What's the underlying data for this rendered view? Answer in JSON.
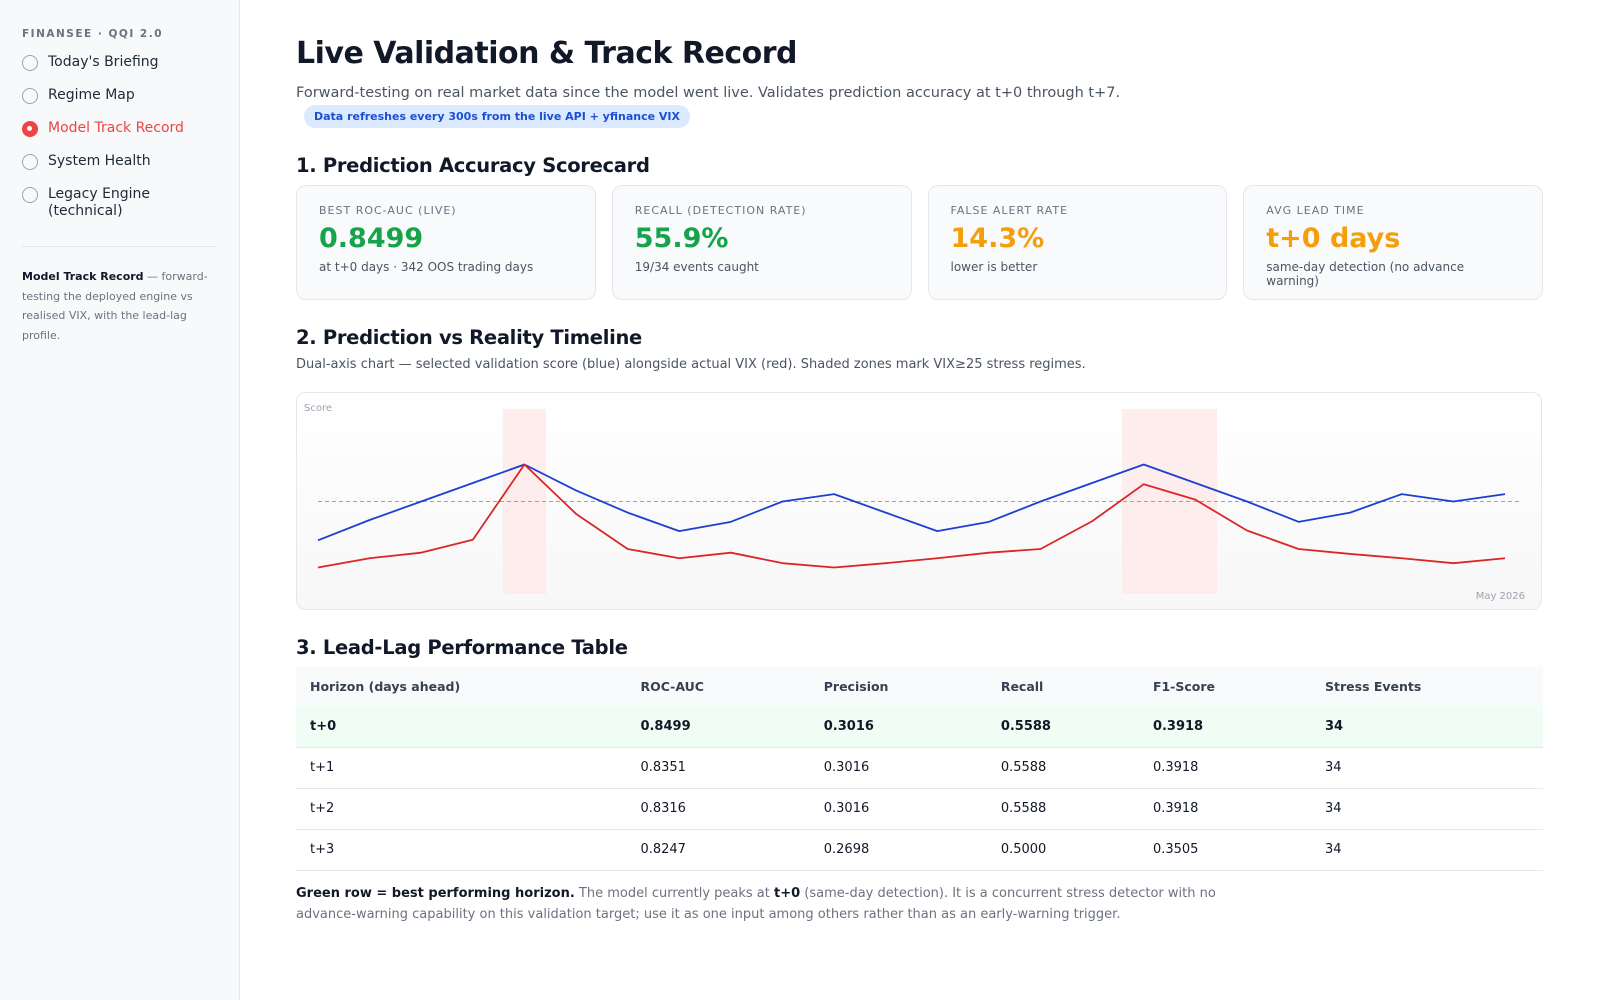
{
  "sidebar": {
    "brand": "FINANSEE · QQI 2.0",
    "active_index": 2,
    "nav": [
      "Today's Briefing",
      "Regime Map",
      "Model Track Record",
      "System Health",
      "Legacy Engine (technical)"
    ],
    "note_bold": "Model Track Record",
    "note_text": " — forward-testing the deployed engine vs realised VIX, with the lead-lag profile."
  },
  "header": {
    "title": "Live Validation & Track Record",
    "subtitle": "Forward-testing on real market data since the model went live. Validates prediction accuracy at t+0 through t+7.",
    "badge": "Data refreshes every 300s from the live API + yfinance VIX"
  },
  "scorecard": {
    "heading": "1. Prediction Accuracy Scorecard",
    "cards": [
      {
        "label": "BEST ROC-AUC (LIVE)",
        "value": "0.8499",
        "sub": "at t+0 days · 342 OOS trading days",
        "color": "#16a34a"
      },
      {
        "label": "RECALL (DETECTION RATE)",
        "value": "55.9%",
        "sub": "19/34 events caught",
        "color": "#16a34a"
      },
      {
        "label": "FALSE ALERT RATE",
        "value": "14.3%",
        "sub": "lower is better",
        "color": "#f59e0b"
      },
      {
        "label": "AVG LEAD TIME",
        "value": "t+0 days",
        "sub": "same-day detection (no advance warning)",
        "color": "#f59e0b"
      }
    ]
  },
  "timeline": {
    "heading": "2. Prediction vs Reality Timeline",
    "description": "Dual-axis chart — selected validation score (blue) alongside actual VIX (red). Shaded zones mark VIX≥25 stress regimes."
  },
  "chart_data": {
    "type": "line",
    "y_label": "Score",
    "x_label": "May 2026",
    "categories": [
      null,
      null,
      null,
      null,
      null,
      null,
      null,
      null,
      null,
      null,
      null,
      null,
      null,
      null,
      null,
      null,
      null,
      null,
      null,
      null,
      null,
      null,
      null,
      null
    ],
    "ylim": [
      0,
      1
    ],
    "y2lim": [
      10,
      40
    ],
    "score_threshold": 0.5,
    "stress_threshold": 25,
    "series": [
      {
        "color": "#1d3fd1",
        "values": [
          0.29,
          0.4,
          0.5,
          0.6,
          0.7,
          0.56,
          0.44,
          0.34,
          0.39,
          0.5,
          0.54,
          0.44,
          0.34,
          0.39,
          0.5,
          0.6,
          0.7,
          0.6,
          0.5,
          0.39,
          0.44,
          0.54,
          0.5,
          0.54
        ]
      },
      {
        "color": "#dc2626",
        "axis": "y2",
        "values": [
          14.3,
          15.8,
          16.7,
          18.8,
          31,
          23,
          17.3,
          15.8,
          16.7,
          15,
          14.3,
          15,
          15.8,
          16.7,
          17.3,
          21.8,
          27.8,
          25.3,
          20.3,
          17.3,
          16.5,
          15.8,
          15,
          15.8
        ]
      }
    ]
  },
  "table": {
    "heading": "3. Lead-Lag Performance Table",
    "columns": [
      "Horizon (days ahead)",
      "ROC-AUC",
      "Precision",
      "Recall",
      "F1-Score",
      "Stress Events"
    ],
    "best_row": 0,
    "rows": [
      [
        "t+0",
        "0.8499",
        "0.3016",
        "0.5588",
        "0.3918",
        "34"
      ],
      [
        "t+1",
        "0.8351",
        "0.3016",
        "0.5588",
        "0.3918",
        "34"
      ],
      [
        "t+2",
        "0.8316",
        "0.3016",
        "0.5588",
        "0.3918",
        "34"
      ],
      [
        "t+3",
        "0.8247",
        "0.2698",
        "0.5000",
        "0.3505",
        "34"
      ]
    ],
    "note_bold": "Green row = best performing horizon.",
    "note_text1": " The model currently peaks at ",
    "note_strong": "t+0",
    "note_text2": " (same-day detection). It is a concurrent stress detector with no advance-warning capability on this validation target; use it as one input among others rather than as an early-warning trigger."
  }
}
